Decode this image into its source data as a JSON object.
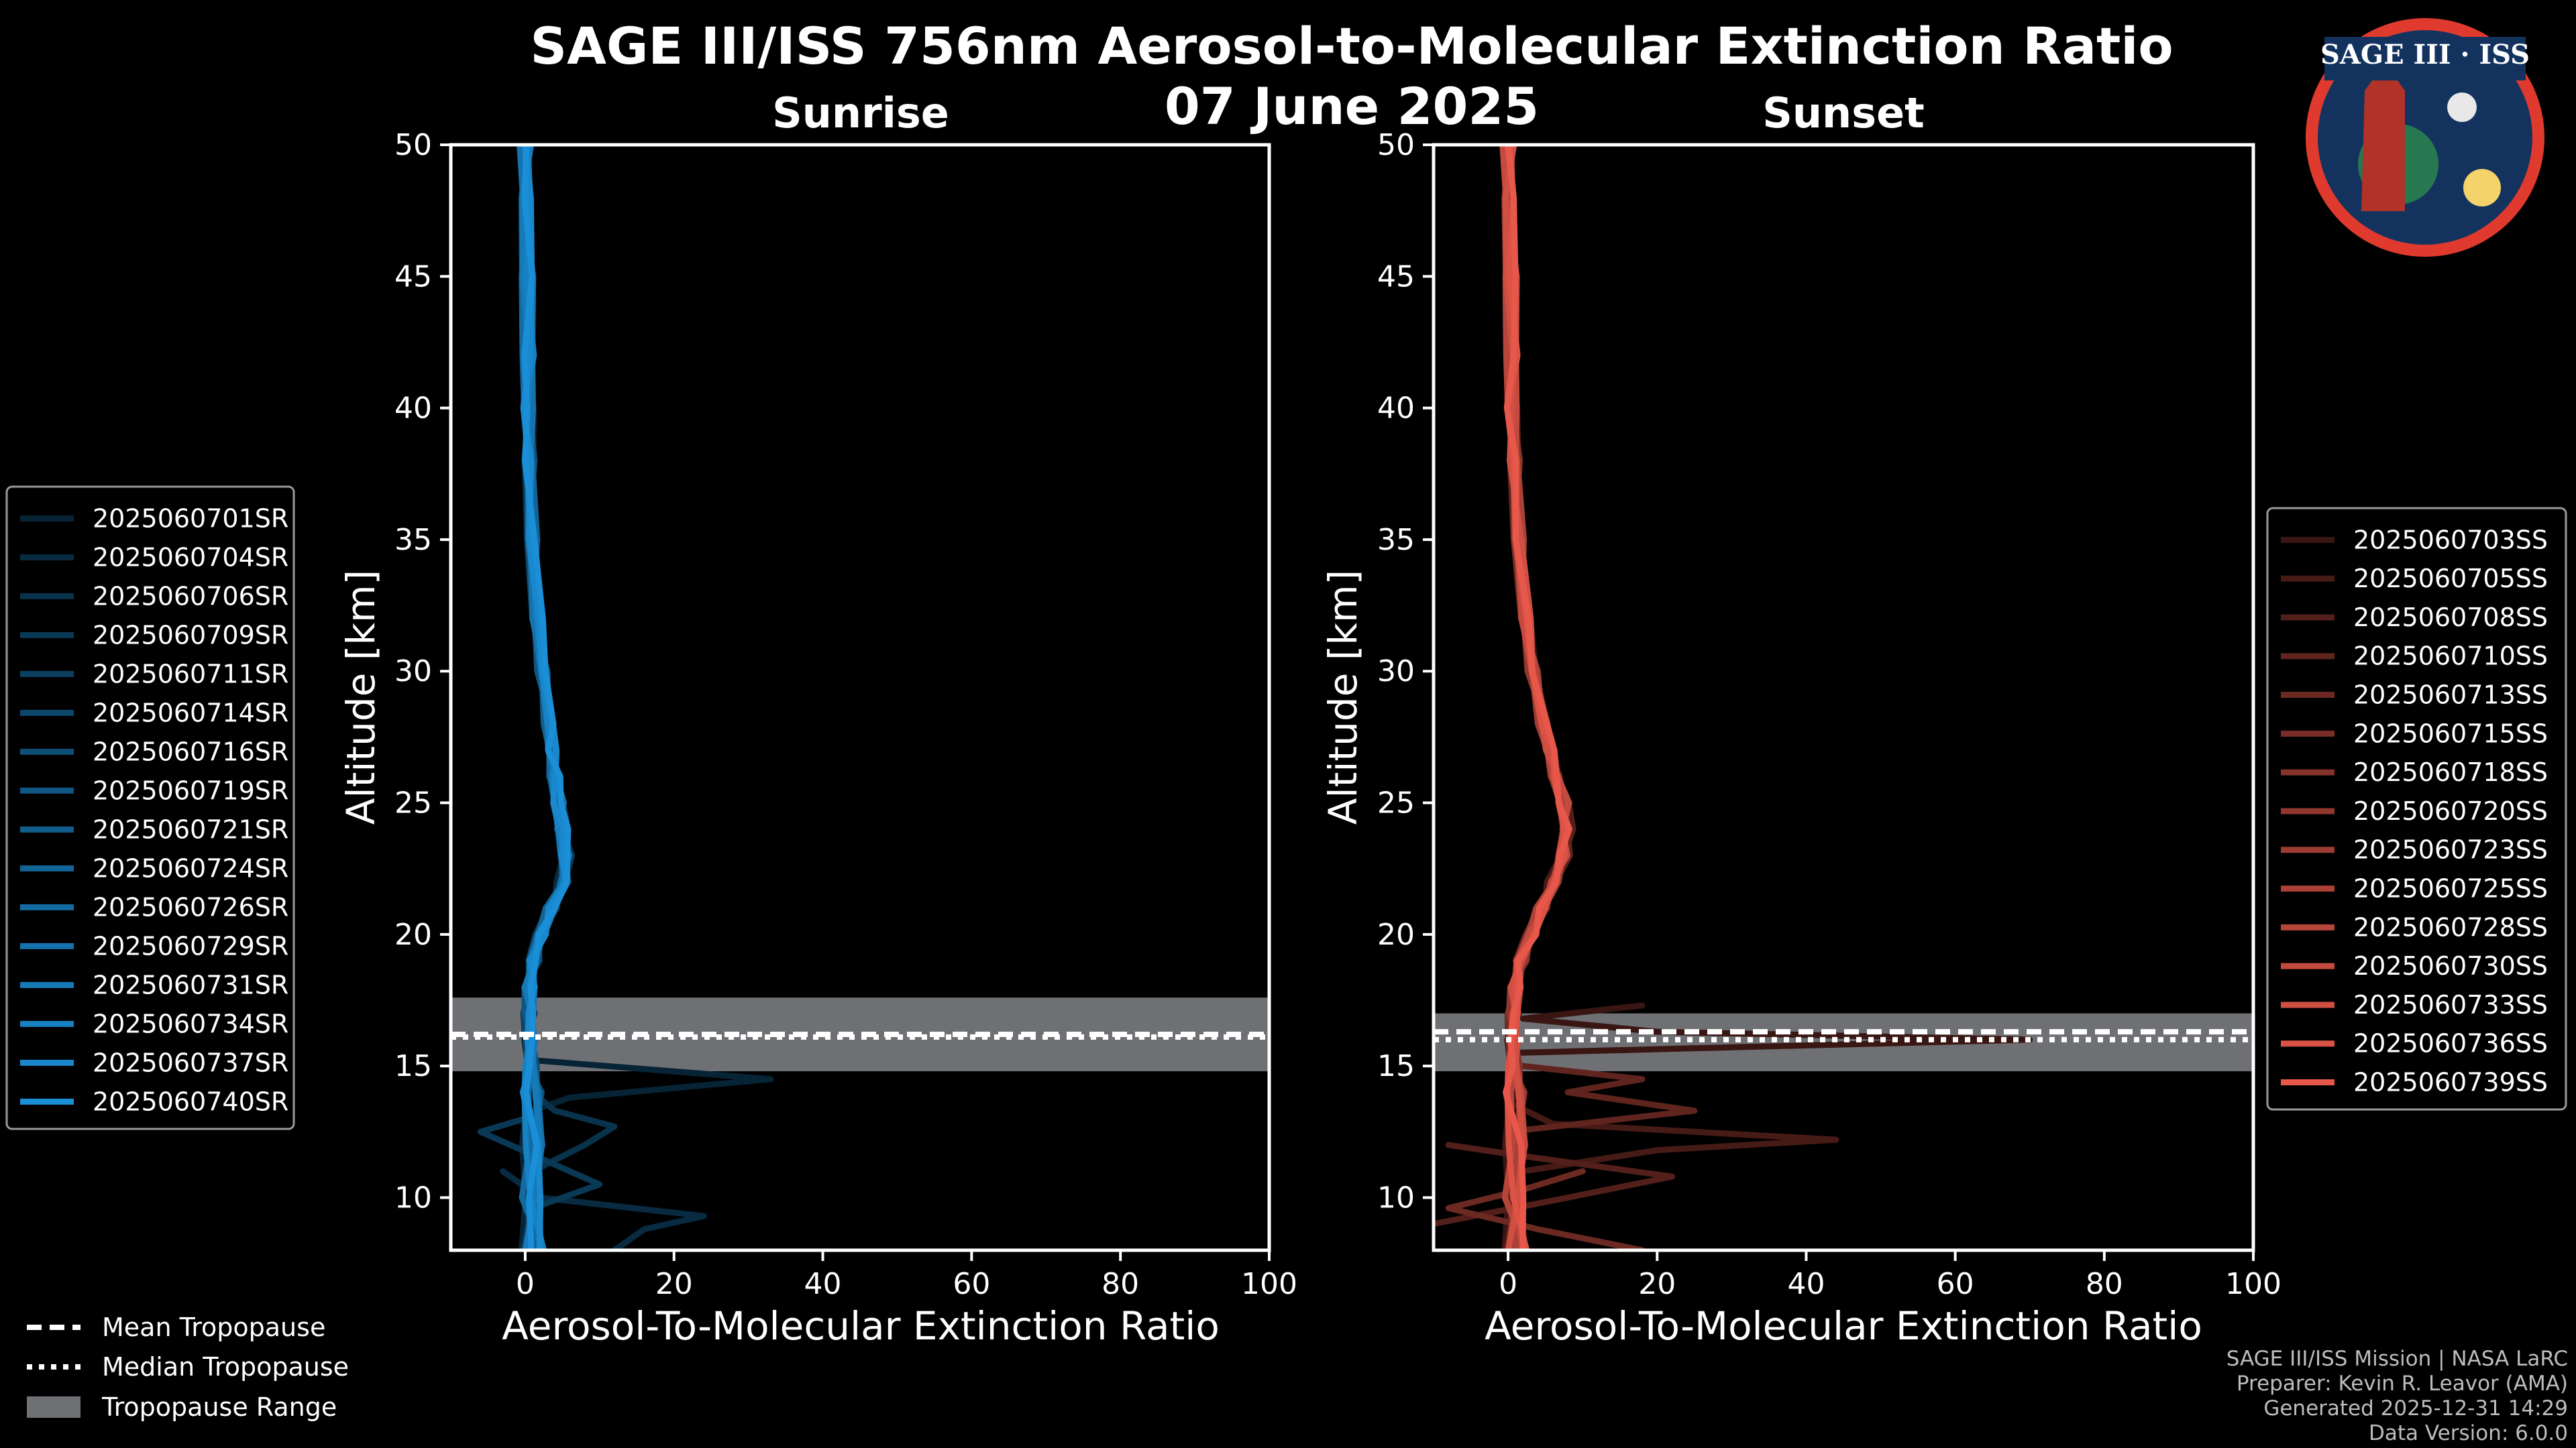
{
  "title": "SAGE III/ISS 756nm Aerosol-to-Molecular Extinction Ratio",
  "date": "07 June 2025",
  "logo": {
    "text": "SAGE III · ISS"
  },
  "credits": [
    "SAGE III/ISS Mission | NASA LaRC",
    "Preparer: Kevin R. Leavor (AMA)",
    "Generated 2025-12-31 14:29",
    "Data Version: 6.0.0"
  ],
  "shared_legend": {
    "mean": "Mean Tropopause",
    "median": "Median Tropopause",
    "range": "Tropopause Range"
  },
  "colors": {
    "sunrise": "#1a8fd8",
    "sunset": "#e8584a",
    "tropo_band": "#6f7074"
  },
  "chart_data": [
    {
      "type": "line",
      "title": "Sunrise",
      "xlabel": "Aerosol-To-Molecular Extinction Ratio",
      "ylabel": "Altitude [km]",
      "xlim": [
        -10,
        100
      ],
      "ylim": [
        8,
        50
      ],
      "xticks": [
        0,
        20,
        40,
        60,
        80,
        100
      ],
      "yticks": [
        10,
        15,
        20,
        25,
        30,
        35,
        40,
        45,
        50
      ],
      "tropopause": {
        "mean": 16.2,
        "median": 16.1,
        "range": [
          14.8,
          17.6
        ]
      },
      "series_names": [
        "2025060701SR",
        "2025060704SR",
        "2025060706SR",
        "2025060709SR",
        "2025060711SR",
        "2025060714SR",
        "2025060716SR",
        "2025060719SR",
        "2025060721SR",
        "2025060724SR",
        "2025060726SR",
        "2025060729SR",
        "2025060731SR",
        "2025060734SR",
        "2025060737SR",
        "2025060740SR"
      ],
      "base_profile": {
        "alt": [
          8,
          10,
          12,
          14,
          15,
          16,
          17,
          18,
          19,
          20,
          21,
          22,
          23,
          24,
          25,
          26,
          27,
          28,
          30,
          32,
          35,
          38,
          40,
          42,
          45,
          48,
          50
        ],
        "ratio": [
          1,
          1,
          1,
          1,
          0.8,
          0.6,
          0.5,
          0.6,
          1.2,
          2,
          3.5,
          5,
          5.5,
          5,
          4.5,
          4,
          3.5,
          3,
          2.3,
          1.6,
          1,
          0.6,
          0.5,
          0.4,
          0.3,
          0.2,
          0
        ]
      },
      "spikes": [
        {
          "alt": [
            12.5,
            13.2,
            13.8,
            14.5,
            15.2
          ],
          "ratio": [
            2,
            0,
            6,
            33,
            2
          ]
        },
        {
          "alt": [
            8,
            8.8,
            9.3,
            10,
            11
          ],
          "ratio": [
            12,
            16,
            24,
            2,
            -3
          ]
        },
        {
          "alt": [
            11,
            12,
            12.7,
            13.3,
            14
          ],
          "ratio": [
            1,
            8,
            12,
            4,
            1
          ]
        },
        {
          "alt": [
            9.5,
            10.5,
            11.5,
            12.5,
            13
          ],
          "ratio": [
            0,
            10,
            2,
            -6,
            0
          ]
        }
      ]
    },
    {
      "type": "line",
      "title": "Sunset",
      "xlabel": "Aerosol-To-Molecular Extinction Ratio",
      "ylabel": "Altitude [km]",
      "xlim": [
        -10,
        100
      ],
      "ylim": [
        8,
        50
      ],
      "xticks": [
        0,
        20,
        40,
        60,
        80,
        100
      ],
      "yticks": [
        10,
        15,
        20,
        25,
        30,
        35,
        40,
        45,
        50
      ],
      "tropopause": {
        "mean": 16.3,
        "median": 16.0,
        "range": [
          14.8,
          17.0
        ]
      },
      "series_names": [
        "2025060703SS",
        "2025060705SS",
        "2025060708SS",
        "2025060710SS",
        "2025060713SS",
        "2025060715SS",
        "2025060718SS",
        "2025060720SS",
        "2025060723SS",
        "2025060725SS",
        "2025060728SS",
        "2025060730SS",
        "2025060733SS",
        "2025060736SS",
        "2025060739SS"
      ],
      "base_profile": {
        "alt": [
          8,
          10,
          12,
          14,
          15,
          16,
          17,
          18,
          19,
          20,
          21,
          22,
          23,
          24,
          25,
          26,
          27,
          28,
          30,
          32,
          35,
          38,
          40,
          42,
          45,
          48,
          50
        ],
        "ratio": [
          1,
          1,
          1,
          1,
          0.8,
          0.6,
          0.7,
          1,
          1.8,
          3,
          4.5,
          6,
          7.5,
          8,
          7.5,
          6.5,
          5.5,
          4.5,
          3.3,
          2.4,
          1.5,
          0.9,
          0.6,
          0.5,
          0.4,
          0.2,
          0
        ]
      },
      "spikes": [
        {
          "alt": [
            15.5,
            16,
            16.3,
            16.8,
            17.3
          ],
          "ratio": [
            1,
            70,
            20,
            2,
            18
          ]
        },
        {
          "alt": [
            11,
            11.8,
            12.2,
            12.8,
            13.5
          ],
          "ratio": [
            2,
            20,
            44,
            6,
            1
          ]
        },
        {
          "alt": [
            9,
            10,
            10.8,
            11.5,
            12
          ],
          "ratio": [
            -10,
            8,
            22,
            4,
            -8
          ]
        },
        {
          "alt": [
            12.5,
            13.3,
            14,
            14.5,
            15
          ],
          "ratio": [
            0,
            25,
            8,
            18,
            2
          ]
        },
        {
          "alt": [
            8,
            8.8,
            9.6,
            10.3,
            11
          ],
          "ratio": [
            18,
            4,
            -8,
            2,
            10
          ]
        }
      ]
    }
  ]
}
